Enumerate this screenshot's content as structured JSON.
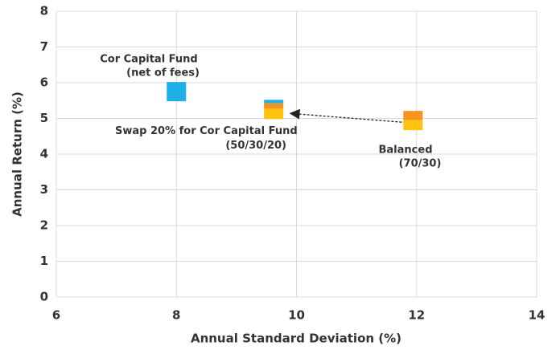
{
  "chart_data": {
    "type": "scatter",
    "xlabel": "Annual Standard Deviation (%)",
    "ylabel": "Annual Return (%)",
    "xlim": [
      6,
      14
    ],
    "xticks": [
      6,
      8,
      10,
      12,
      14
    ],
    "ylim": [
      0,
      8
    ],
    "yticks": [
      0,
      1,
      2,
      3,
      4,
      5,
      6,
      7,
      8
    ],
    "grid": true,
    "points": [
      {
        "label": [
          "Cor Capital Fund",
          "(net of fees)"
        ],
        "x": 8.0,
        "y": 5.75,
        "colors": [
          "#1eaee8"
        ]
      },
      {
        "label": [
          "Swap 20% for Cor Capital Fund",
          "(50/30/20)"
        ],
        "x": 9.62,
        "y": 5.25,
        "colors": [
          "#1eaee8",
          "#f7941d",
          "#ffc20e"
        ]
      },
      {
        "label": [
          "Balanced",
          "(70/30)"
        ],
        "x": 11.94,
        "y": 4.94,
        "colors": [
          "#f7941d",
          "#ffc20e"
        ]
      }
    ]
  }
}
